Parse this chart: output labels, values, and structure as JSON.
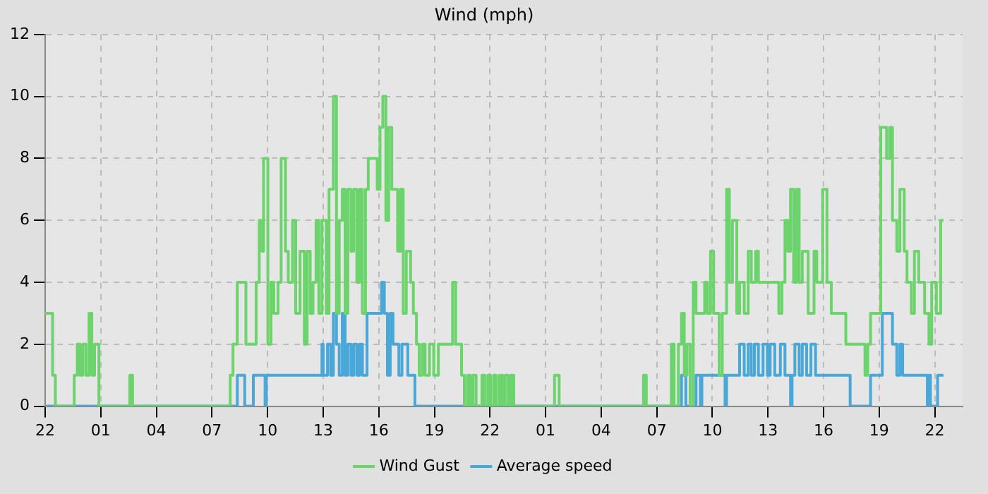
{
  "chart_data": {
    "type": "step",
    "title": "Wind (mph)",
    "legend": "bottom",
    "grid": true,
    "marker": "none",
    "xlim": [
      "--01-01T22:00",
      "--01-03T23:30"
    ],
    "xticks": [
      {
        "value": "--01-01T22:00",
        "label": "22"
      },
      {
        "value": "--01-02T01:00",
        "label": "01"
      },
      {
        "value": "--01-02T04:00",
        "label": "04"
      },
      {
        "value": "--01-02T07:00",
        "label": "07"
      },
      {
        "value": "--01-02T10:00",
        "label": "10"
      },
      {
        "value": "--01-02T13:00",
        "label": "13"
      },
      {
        "value": "--01-02T16:00",
        "label": "16"
      },
      {
        "value": "--01-02T19:00",
        "label": "19"
      },
      {
        "value": "--01-02T22:00",
        "label": "22"
      },
      {
        "value": "--01-03T01:00",
        "label": "01"
      },
      {
        "value": "--01-03T04:00",
        "label": "04"
      },
      {
        "value": "--01-03T07:00",
        "label": "07"
      },
      {
        "value": "--01-03T10:00",
        "label": "10"
      },
      {
        "value": "--01-03T13:00",
        "label": "13"
      },
      {
        "value": "--01-03T16:00",
        "label": "16"
      },
      {
        "value": "--01-03T19:00",
        "label": "19"
      },
      {
        "value": "--01-03T22:00",
        "label": "22"
      }
    ],
    "ylim": [
      0,
      12
    ],
    "yticks": [
      0,
      2,
      4,
      6,
      8,
      10,
      12
    ],
    "series": [
      {
        "name": "Wind Gust",
        "color": "#6dd46d",
        "x": [
          "--01-01T22:00",
          "--01-01T22:24",
          "--01-01T22:33",
          "--01-01T23:34",
          "--01-01T23:44",
          "--01-01T23:53",
          "--01-02T00:02",
          "--01-02T00:12",
          "--01-02T00:22",
          "--01-02T00:31",
          "--01-02T00:40",
          "--01-02T00:54",
          "--01-02T02:34",
          "--01-02T02:43",
          "--01-02T07:59",
          "--01-02T08:08",
          "--01-02T08:22",
          "--01-02T08:50",
          "--01-02T09:23",
          "--01-02T09:33",
          "--01-02T09:42",
          "--01-02T09:47",
          "--01-02T10:01",
          "--01-02T10:11",
          "--01-02T10:20",
          "--01-02T10:34",
          "--01-02T10:44",
          "--01-02T10:58",
          "--01-02T11:07",
          "--01-02T11:21",
          "--01-02T11:31",
          "--01-02T11:45",
          "--01-02T11:59",
          "--01-02T12:08",
          "--01-02T12:18",
          "--01-02T12:27",
          "--01-02T12:37",
          "--01-02T12:46",
          "--01-02T12:56",
          "--01-02T13:10",
          "--01-02T13:19",
          "--01-02T13:33",
          "--01-02T13:43",
          "--01-02T13:52",
          "--01-02T14:02",
          "--01-02T14:11",
          "--01-02T14:20",
          "--01-02T14:30",
          "--01-02T14:39",
          "--01-02T14:49",
          "--01-02T14:58",
          "--01-02T15:07",
          "--01-02T15:17",
          "--01-02T15:26",
          "--01-02T15:55",
          "--01-02T16:04",
          "--01-02T16:13",
          "--01-02T16:23",
          "--01-02T16:32",
          "--01-02T16:42",
          "--01-02T17:01",
          "--01-02T17:10",
          "--01-02T17:19",
          "--01-02T17:29",
          "--01-02T17:43",
          "--01-02T17:52",
          "--01-02T18:02",
          "--01-02T18:11",
          "--01-02T18:21",
          "--01-02T18:30",
          "--01-02T18:44",
          "--01-02T18:58",
          "--01-02T19:13",
          "--01-02T19:59",
          "--01-02T20:09",
          "--01-02T20:28",
          "--01-02T20:37",
          "--01-02T20:47",
          "--01-02T20:56",
          "--01-02T21:05",
          "--01-02T21:15",
          "--01-02T21:34",
          "--01-02T21:43",
          "--01-02T21:53",
          "--01-02T22:02",
          "--01-02T22:12",
          "--01-02T22:21",
          "--01-02T22:31",
          "--01-02T22:40",
          "--01-02T22:49",
          "--01-02T22:59",
          "--01-02T23:08",
          "--01-02T23:17",
          "--01-03T01:29",
          "--01-03T01:44",
          "--01-03T06:17",
          "--01-03T06:26",
          "--01-03T07:47",
          "--01-03T07:56",
          "--01-03T08:10",
          "--01-03T08:20",
          "--01-03T08:29",
          "--01-03T08:38",
          "--01-03T08:48",
          "--01-03T08:58",
          "--01-03T09:07",
          "--01-03T09:35",
          "--01-03T09:44",
          "--01-03T09:54",
          "--01-03T10:04",
          "--01-03T10:22",
          "--01-03T10:32",
          "--01-03T10:46",
          "--01-03T10:55",
          "--01-03T11:05",
          "--01-03T11:19",
          "--01-03T11:28",
          "--01-03T11:43",
          "--01-03T11:56",
          "--01-03T12:06",
          "--01-03T12:20",
          "--01-03T12:29",
          "--01-03T13:35",
          "--01-03T13:45",
          "--01-03T13:55",
          "--01-03T14:04",
          "--01-03T14:13",
          "--01-03T14:23",
          "--01-03T14:32",
          "--01-03T14:41",
          "--01-03T14:51",
          "--01-03T15:10",
          "--01-03T15:29",
          "--01-03T15:38",
          "--01-03T15:57",
          "--01-03T16:11",
          "--01-03T16:25",
          "--01-03T17:12",
          "--01-03T18:14",
          "--01-03T18:23",
          "--01-03T18:32",
          "--01-03T19:05",
          "--01-03T19:24",
          "--01-03T19:34",
          "--01-03T19:43",
          "--01-03T19:57",
          "--01-03T20:07",
          "--01-03T20:21",
          "--01-03T20:30",
          "--01-03T20:44",
          "--01-03T20:54",
          "--01-03T21:08",
          "--01-03T21:27",
          "--01-03T21:41",
          "--01-03T21:50",
          "--01-03T22:05",
          "--01-03T22:19",
          "--01-03T22:28"
        ],
        "values": [
          3,
          1,
          0,
          1,
          2,
          1,
          2,
          1,
          3,
          1,
          2,
          0,
          1,
          0,
          1,
          2,
          4,
          2,
          4,
          6,
          5,
          8,
          2,
          4,
          3,
          4,
          8,
          5,
          4,
          6,
          3,
          5,
          2,
          5,
          3,
          4,
          6,
          3,
          6,
          3,
          7,
          10,
          3,
          6,
          7,
          3,
          7,
          5,
          7,
          4,
          7,
          3,
          7,
          8,
          7,
          9,
          10,
          6,
          9,
          7,
          5,
          7,
          3,
          5,
          4,
          3,
          2,
          1,
          2,
          1,
          2,
          1,
          2,
          4,
          2,
          1,
          0,
          1,
          0,
          1,
          0,
          1,
          0,
          1,
          0,
          1,
          0,
          1,
          0,
          1,
          0,
          1,
          0,
          1,
          0,
          1,
          0,
          2,
          0,
          2,
          3,
          1,
          2,
          0,
          4,
          3,
          4,
          3,
          5,
          3,
          1,
          3,
          7,
          4,
          6,
          3,
          4,
          3,
          5,
          4,
          5,
          4,
          3,
          4,
          6,
          5,
          7,
          4,
          7,
          4,
          5,
          3,
          5,
          4,
          7,
          4,
          3,
          2,
          1,
          2,
          3,
          9,
          8,
          9,
          6,
          5,
          7,
          5,
          4,
          3,
          5,
          4,
          3,
          2,
          4,
          3,
          6,
          6
        ]
      },
      {
        "name": "Average speed",
        "color": "#4aa8d8",
        "x": [
          "--01-01T22:00",
          "--01-02T08:22",
          "--01-02T08:46",
          "--01-02T09:14",
          "--01-02T09:52",
          "--01-02T09:56",
          "--01-02T12:56",
          "--01-02T13:00",
          "--01-02T13:14",
          "--01-02T13:24",
          "--01-02T13:33",
          "--01-02T13:43",
          "--01-02T13:52",
          "--01-02T14:02",
          "--01-02T14:11",
          "--01-02T14:20",
          "--01-02T14:30",
          "--01-02T14:39",
          "--01-02T14:49",
          "--01-02T14:58",
          "--01-02T15:07",
          "--01-02T15:22",
          "--01-02T16:09",
          "--01-02T16:18",
          "--01-02T16:28",
          "--01-02T16:37",
          "--01-02T16:46",
          "--01-02T17:05",
          "--01-02T17:15",
          "--01-02T17:34",
          "--01-02T17:57",
          "--01-03T08:20",
          "--01-03T08:34",
          "--01-03T09:07",
          "--01-03T09:21",
          "--01-03T09:26",
          "--01-03T10:41",
          "--01-03T10:46",
          "--01-03T11:28",
          "--01-03T11:43",
          "--01-03T11:56",
          "--01-03T12:06",
          "--01-03T12:16",
          "--01-03T12:29",
          "--01-03T12:44",
          "--01-03T12:58",
          "--01-03T13:07",
          "--01-03T13:22",
          "--01-03T13:40",
          "--01-03T13:55",
          "--01-03T14:13",
          "--01-03T14:18",
          "--01-03T14:27",
          "--01-03T14:41",
          "--01-03T14:51",
          "--01-03T15:05",
          "--01-03T15:19",
          "--01-03T15:34",
          "--01-03T17:26",
          "--01-03T18:32",
          "--01-03T19:10",
          "--01-03T19:43",
          "--01-03T19:57",
          "--01-03T20:07",
          "--01-03T20:16",
          "--01-03T21:36",
          "--01-03T21:41",
          "--01-03T21:46",
          "--01-03T22:09",
          "--01-03T22:28"
        ],
        "values": [
          0,
          1,
          0,
          1,
          0,
          1,
          2,
          1,
          2,
          1,
          3,
          2,
          1,
          3,
          1,
          2,
          1,
          2,
          1,
          2,
          1,
          3,
          4,
          3,
          1,
          3,
          2,
          1,
          2,
          1,
          0,
          1,
          0,
          1,
          0,
          1,
          0,
          1,
          2,
          1,
          2,
          1,
          2,
          1,
          2,
          1,
          2,
          1,
          2,
          1,
          0,
          1,
          2,
          1,
          2,
          1,
          2,
          1,
          0,
          1,
          3,
          2,
          1,
          2,
          1,
          0,
          1,
          0,
          1,
          1
        ]
      }
    ]
  }
}
